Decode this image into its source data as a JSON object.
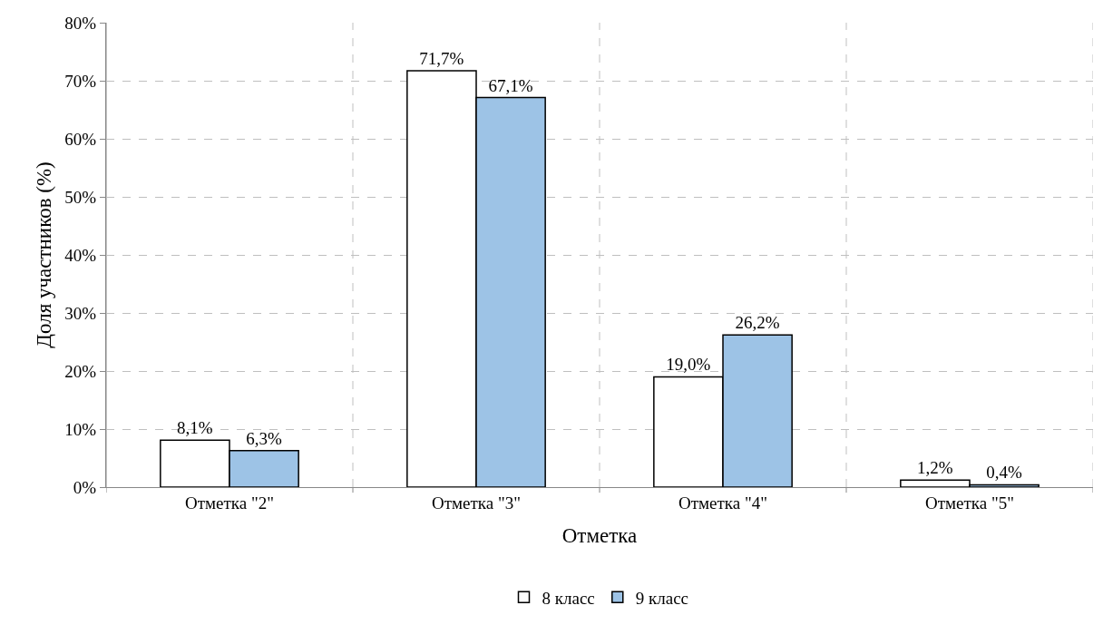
{
  "chart_data": {
    "type": "bar",
    "xlabel": "Отметка",
    "ylabel": "Доля участников (%)",
    "categories": [
      "Отметка \"2\"",
      "Отметка \"3\"",
      "Отметка \"4\"",
      "Отметка \"5\""
    ],
    "series": [
      {
        "name": "8 класс",
        "color": "#ffffff",
        "values": [
          8.1,
          71.7,
          19.0,
          1.2
        ],
        "value_labels": [
          "8,1%",
          "71,7%",
          "19,0%",
          "1,2%"
        ]
      },
      {
        "name": "9 класс",
        "color": "#9dc3e6",
        "values": [
          6.3,
          67.1,
          26.2,
          0.4
        ],
        "value_labels": [
          "6,3%",
          "67,1%",
          "26,2%",
          "0,4%"
        ]
      }
    ],
    "ylim": [
      0,
      80
    ],
    "yticks": [
      {
        "value": 0,
        "label": "0%"
      },
      {
        "value": 10,
        "label": "10%"
      },
      {
        "value": 20,
        "label": "20%"
      },
      {
        "value": 30,
        "label": "30%"
      },
      {
        "value": 40,
        "label": "40%"
      },
      {
        "value": 50,
        "label": "50%"
      },
      {
        "value": 60,
        "label": "60%"
      },
      {
        "value": 70,
        "label": "70%"
      },
      {
        "value": 80,
        "label": "80%"
      }
    ],
    "grid": true,
    "legend": "bottom"
  }
}
